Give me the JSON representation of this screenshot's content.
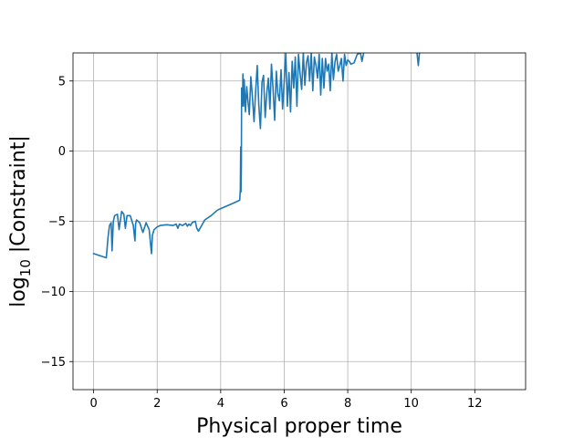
{
  "chart_data": {
    "type": "line",
    "title": "",
    "xlabel": "Physical proper time",
    "ylabel_base": "log",
    "ylabel_sub": "10",
    "ylabel_rest": " |Constraint|",
    "xlim": [
      -0.65,
      13.6
    ],
    "ylim": [
      -17,
      7
    ],
    "xticks": [
      0,
      2,
      4,
      6,
      8,
      10,
      12
    ],
    "yticks": [
      -15,
      -10,
      -5,
      0,
      5
    ],
    "ytick_labels": [
      "−15",
      "−10",
      "−5",
      "0",
      "5"
    ],
    "grid": true,
    "line_color": "#1f77b4",
    "series": [
      {
        "x": [
          0.0,
          0.2,
          0.4,
          0.45,
          0.5,
          0.55,
          0.58,
          0.62,
          0.66,
          0.75,
          0.8,
          0.88,
          0.95,
          1.0,
          1.05,
          1.15,
          1.25,
          1.3,
          1.32,
          1.35,
          1.45,
          1.55,
          1.65,
          1.75,
          1.82,
          1.85,
          1.9,
          2.0,
          2.1,
          2.3,
          2.5,
          2.6,
          2.65,
          2.7,
          2.8,
          2.9,
          2.95,
          3.0,
          3.05,
          3.1,
          3.2,
          3.25,
          3.3,
          3.4,
          3.5,
          3.7,
          3.9,
          4.1,
          4.3,
          4.5,
          4.6,
          4.62,
          4.63,
          4.64,
          4.65,
          4.66,
          4.67,
          4.68,
          4.69,
          4.7,
          4.72,
          4.74,
          4.78,
          4.82,
          4.86,
          4.9,
          4.95,
          5.0,
          5.05,
          5.1,
          5.15,
          5.2,
          5.25,
          5.3,
          5.35,
          5.4,
          5.45,
          5.5,
          5.55,
          5.6,
          5.65,
          5.7,
          5.75,
          5.8,
          5.85,
          5.9,
          5.95,
          6.0,
          6.05,
          6.1,
          6.15,
          6.2,
          6.25,
          6.3,
          6.35,
          6.4,
          6.45,
          6.5,
          6.55,
          6.6,
          6.65,
          6.7,
          6.75,
          6.8,
          6.85,
          6.9,
          6.95,
          7.0,
          7.05,
          7.1,
          7.15,
          7.2,
          7.25,
          7.3,
          7.35,
          7.4,
          7.45,
          7.5,
          7.55,
          7.6,
          7.65,
          7.7,
          7.75,
          7.8,
          7.85,
          7.9,
          7.95,
          8.0,
          8.05,
          8.1,
          8.2,
          8.3,
          8.4,
          8.45,
          8.5
        ],
        "y": [
          -7.3,
          -7.45,
          -7.6,
          -6.2,
          -5.3,
          -5.1,
          -7.1,
          -5.0,
          -4.6,
          -4.5,
          -5.6,
          -4.3,
          -4.5,
          -5.5,
          -4.6,
          -4.6,
          -5.3,
          -6.4,
          -5.2,
          -4.9,
          -5.1,
          -5.8,
          -5.1,
          -5.6,
          -7.3,
          -6.0,
          -5.6,
          -5.4,
          -5.3,
          -5.25,
          -5.3,
          -5.2,
          -5.5,
          -5.2,
          -5.3,
          -5.15,
          -5.35,
          -5.2,
          -5.3,
          -5.1,
          -5.0,
          -5.5,
          -5.7,
          -5.3,
          -4.9,
          -4.6,
          -4.2,
          -4.0,
          -3.8,
          -3.6,
          -3.5,
          -2.7,
          0.3,
          -2.9,
          -1.0,
          4.5,
          3.2,
          4.2,
          3.6,
          5.5,
          3.2,
          5.1,
          2.8,
          4.6,
          3.5,
          2.6,
          5.3,
          3.8,
          2.1,
          4.2,
          6.1,
          3.3,
          1.6,
          4.9,
          5.4,
          2.4,
          4.1,
          5.2,
          3.0,
          6.2,
          4.4,
          2.2,
          5.7,
          4.1,
          3.6,
          5.8,
          3.0,
          5.0,
          7.0,
          3.2,
          5.6,
          2.8,
          6.4,
          4.5,
          6.7,
          3.2,
          6.9,
          5.5,
          4.4,
          7.0,
          4.7,
          6.3,
          6.8,
          5.0,
          7.0,
          4.3,
          6.7,
          6.1,
          5.2,
          6.9,
          4.0,
          6.6,
          4.5,
          6.6,
          5.7,
          6.2,
          4.3,
          7.0,
          5.1,
          6.4,
          6.9,
          5.7,
          6.1,
          6.6,
          5.0,
          6.9,
          6.1,
          6.5,
          6.4,
          6.2,
          6.3,
          6.9,
          7.0,
          6.4,
          7.0
        ]
      },
      {
        "x": [
          10.18,
          10.22,
          10.26
        ],
        "y": [
          7.0,
          6.1,
          7.0
        ]
      }
    ]
  }
}
